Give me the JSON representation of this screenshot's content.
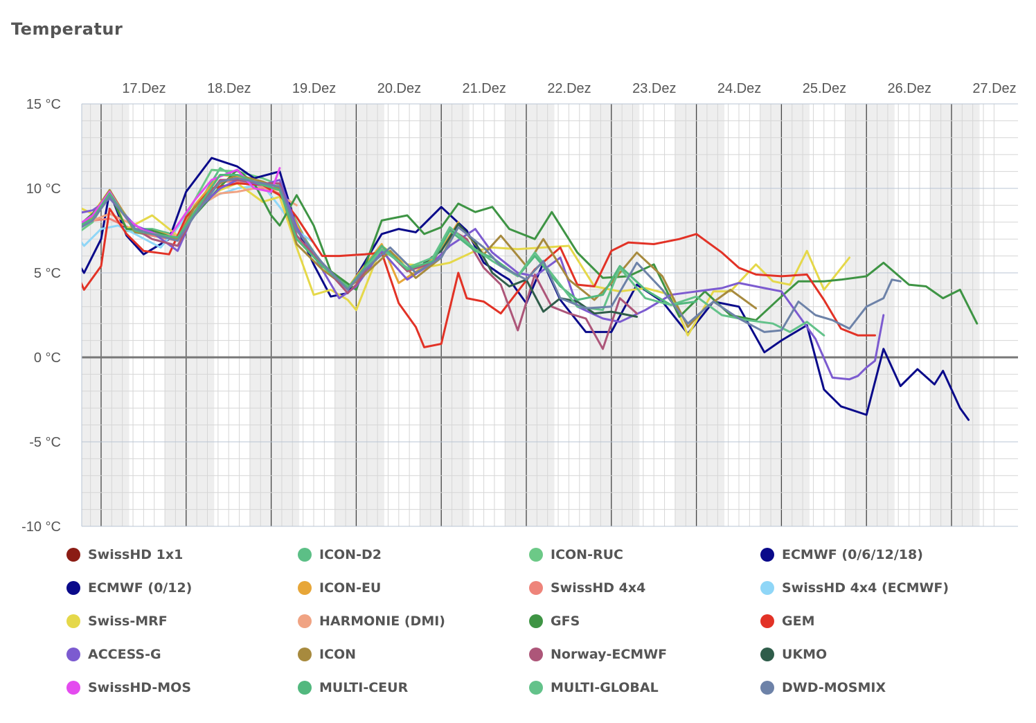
{
  "title": "Temperatur",
  "chart_data": {
    "type": "line",
    "title": "Temperatur",
    "xlabel": "",
    "ylabel": "",
    "ylim": [
      -10,
      15
    ],
    "xlim": [
      16.3,
      27.3
    ],
    "yticks": [
      "15 °C",
      "10 °C",
      "5 °C",
      "0 °C",
      "-5 °C",
      "-10 °C"
    ],
    "ytick_values": [
      15,
      10,
      5,
      0,
      -5,
      -10
    ],
    "xticks": [
      "17.Dez",
      "18.Dez",
      "19.Dez",
      "20.Dez",
      "21.Dez",
      "22.Dez",
      "23.Dez",
      "24.Dez",
      "25.Dez",
      "26.Dez",
      "27.Dez"
    ],
    "xtick_values": [
      17,
      18,
      19,
      20,
      21,
      22,
      23,
      24,
      25,
      26,
      27
    ],
    "series": [
      {
        "name": "SwissHD 1x1",
        "color": "#8b1c14",
        "x": [],
        "values": []
      },
      {
        "name": "ICON-D2",
        "color": "#5cbf86",
        "x": [
          16.38,
          16.6,
          16.9,
          17.1,
          17.4,
          17.6,
          17.9,
          18.1,
          18.4,
          18.6,
          18.9,
          19.1,
          19.4,
          19.6,
          19.9,
          20.0
        ],
        "values": [
          8.0,
          7.2,
          8.2,
          9.8,
          7.6,
          7.6,
          7.2,
          8.7,
          11.2,
          10.6,
          10.2,
          10.0,
          7.0,
          5.5,
          4.2,
          4.6
        ]
      },
      {
        "name": "ICON-RUC",
        "color": "#6cc987",
        "x": [
          16.38,
          16.6,
          16.9,
          17.1,
          17.3,
          17.5,
          17.8,
          18.0,
          18.3,
          18.6,
          18.9,
          19.1
        ],
        "values": [
          7.8,
          6.9,
          8.0,
          9.7,
          7.5,
          7.3,
          7.0,
          8.4,
          11.1,
          11.0,
          10.6,
          10.2
        ]
      },
      {
        "name": "ECMWF (0/6/12/18)",
        "color": "#0a0a8a",
        "x": [
          16.38,
          16.6,
          16.8,
          17.0,
          17.1,
          17.3,
          17.5,
          17.8,
          18.0,
          18.3,
          18.6,
          18.8,
          19.1,
          19.3,
          19.5,
          19.7,
          19.9,
          20.0,
          20.3,
          20.5,
          20.7,
          21.0,
          21.3,
          21.5,
          21.7,
          21.8,
          22.0,
          22.2,
          22.4,
          22.7,
          23.0,
          23.3,
          23.6,
          23.9,
          24.2,
          24.5,
          24.8,
          25.0,
          25.3,
          25.5,
          25.7,
          26.0,
          26.2,
          26.4,
          26.6,
          26.8,
          26.9,
          27.1,
          27.2
        ],
        "values": [
          7.9,
          6.6,
          5.0,
          7.0,
          9.8,
          7.2,
          6.1,
          7.0,
          9.8,
          11.8,
          11.3,
          10.6,
          11.0,
          7.7,
          5.5,
          3.6,
          3.8,
          4.8,
          7.3,
          7.6,
          7.4,
          8.9,
          7.5,
          5.6,
          4.9,
          4.6,
          3.2,
          5.6,
          3.4,
          1.5,
          1.5,
          4.3,
          3.3,
          1.4,
          3.3,
          3.0,
          0.3,
          1.0,
          1.9,
          -1.9,
          -2.9,
          -3.4,
          0.5,
          -1.7,
          -0.7,
          -1.6,
          -0.8,
          -3.0,
          -3.7
        ]
      },
      {
        "name": "ECMWF (0/12)",
        "color": "#0a0a8a",
        "x": [],
        "values": []
      },
      {
        "name": "ICON-EU",
        "color": "#e7a638",
        "x": [
          16.38,
          16.6,
          16.9,
          17.1,
          17.4,
          17.6,
          17.9,
          18.1,
          18.4,
          18.6,
          18.9,
          19.1,
          19.4,
          19.6,
          19.9,
          20.0,
          20.3,
          20.5,
          20.8,
          21.0,
          21.2
        ],
        "values": [
          7.9,
          7.5,
          8.3,
          9.9,
          7.5,
          7.5,
          7.1,
          9.0,
          10.8,
          10.7,
          10.0,
          9.9,
          6.9,
          5.4,
          4.1,
          4.8,
          6.7,
          4.4,
          5.4,
          6.4,
          8.0
        ]
      },
      {
        "name": "SwissHD 4x4",
        "color": "#ee847a",
        "x": [
          16.38,
          16.6,
          16.9,
          17.1,
          17.4,
          17.6,
          17.9,
          18.1,
          18.4,
          18.6,
          18.9,
          19.1
        ],
        "values": [
          7.8,
          7.7,
          8.1,
          8.2,
          7.5,
          7.2,
          6.9,
          8.6,
          10.4,
          10.4,
          10.0,
          9.7
        ]
      },
      {
        "name": "SwissHD 4x4 (ECMWF)",
        "color": "#8fd6f7",
        "x": [
          16.38,
          16.6,
          16.8,
          17.0,
          17.2,
          17.4,
          17.7,
          18.0,
          18.3,
          18.6,
          18.9,
          19.1,
          19.3,
          19.5
        ],
        "values": [
          8.2,
          7.9,
          6.6,
          7.6,
          7.8,
          7.3,
          6.5,
          8.3,
          9.5,
          10.0,
          10.2,
          8.9,
          7.5,
          6.8
        ]
      },
      {
        "name": "Swiss-MRF",
        "color": "#e5d84a",
        "x": [
          16.38,
          16.6,
          16.9,
          17.1,
          17.3,
          17.6,
          17.9,
          18.1,
          18.4,
          18.6,
          18.9,
          19.1,
          19.3,
          19.5,
          19.7,
          19.9,
          20.0,
          20.3,
          20.6,
          20.9,
          21.1,
          21.4,
          21.6,
          21.9,
          22.2,
          22.5,
          22.8,
          23.1,
          23.4,
          23.7,
          23.9,
          24.2,
          24.4,
          24.7,
          24.9,
          25.1,
          25.3,
          25.5,
          25.8
        ],
        "values": [
          9.1,
          9.2,
          8.5,
          9.9,
          7.6,
          8.4,
          7.2,
          8.8,
          9.9,
          10.3,
          9.2,
          9.5,
          6.5,
          3.7,
          4.0,
          3.4,
          2.8,
          6.6,
          5.5,
          5.4,
          5.6,
          6.3,
          6.5,
          6.4,
          6.5,
          6.6,
          4.2,
          3.9,
          4.1,
          3.7,
          1.3,
          3.9,
          3.9,
          5.5,
          4.5,
          4.3,
          6.3,
          4.0,
          5.9
        ]
      },
      {
        "name": "HARMONIE (DMI)",
        "color": "#f0a383",
        "x": [
          16.38,
          16.6,
          16.9,
          17.1,
          17.4,
          17.6,
          17.9,
          18.1,
          18.4,
          18.6,
          18.9,
          19.1,
          19.3
        ],
        "values": [
          7.4,
          7.9,
          8.1,
          8.5,
          7.8,
          7.3,
          7.2,
          8.8,
          9.7,
          9.8,
          10.1,
          9.6,
          9.0
        ]
      },
      {
        "name": "GFS",
        "color": "#3e9444",
        "x": [
          16.38,
          16.6,
          16.9,
          17.1,
          17.3,
          17.6,
          17.9,
          18.1,
          18.4,
          18.6,
          18.8,
          19.0,
          19.1,
          19.3,
          19.5,
          19.7,
          20.0,
          20.3,
          20.4,
          20.6,
          20.8,
          21.0,
          21.2,
          21.4,
          21.6,
          21.8,
          22.1,
          22.3,
          22.6,
          22.9,
          23.2,
          23.5,
          23.8,
          24.1,
          24.4,
          24.7,
          25.0,
          25.2,
          25.5,
          25.7,
          26.0,
          26.2,
          26.5,
          26.7,
          26.9,
          27.1,
          27.3
        ],
        "values": [
          7.8,
          7.2,
          8.5,
          9.7,
          7.6,
          7.5,
          7.0,
          8.4,
          10.1,
          11.1,
          10.3,
          8.4,
          7.8,
          9.6,
          7.8,
          5.1,
          4.0,
          8.1,
          8.2,
          8.4,
          7.3,
          7.7,
          9.1,
          8.6,
          8.9,
          7.6,
          7.0,
          8.6,
          6.2,
          4.7,
          4.8,
          5.5,
          2.4,
          3.9,
          2.5,
          2.2,
          3.6,
          4.5,
          4.5,
          4.6,
          4.8,
          5.6,
          4.3,
          4.2,
          3.5,
          4.0,
          2.0
        ]
      },
      {
        "name": "GEM",
        "color": "#e23226",
        "x": [
          16.38,
          16.6,
          16.8,
          17.0,
          17.1,
          17.3,
          17.5,
          17.8,
          18.0,
          18.3,
          18.6,
          18.9,
          19.1,
          19.3,
          19.6,
          19.8,
          20.1,
          20.3,
          20.5,
          20.7,
          20.8,
          21.0,
          21.2,
          21.3,
          21.5,
          21.7,
          21.9,
          22.1,
          22.4,
          22.6,
          22.8,
          23.0,
          23.2,
          23.5,
          23.8,
          24.0,
          24.3,
          24.5,
          24.7,
          25.0,
          25.3,
          25.5,
          25.7,
          25.9,
          26.1
        ],
        "values": [
          6.9,
          6.3,
          4.0,
          5.4,
          8.8,
          7.3,
          6.3,
          6.1,
          8.3,
          10.0,
          10.3,
          10.2,
          9.6,
          8.3,
          6.0,
          6.0,
          6.1,
          6.2,
          3.2,
          1.8,
          0.6,
          0.8,
          5.0,
          3.5,
          3.3,
          2.6,
          3.9,
          5.2,
          6.5,
          4.3,
          4.2,
          6.3,
          6.8,
          6.7,
          7.0,
          7.3,
          6.2,
          5.3,
          4.9,
          4.8,
          4.9,
          3.4,
          1.7,
          1.3,
          1.3
        ]
      },
      {
        "name": "ACCESS-G",
        "color": "#7c5bd0",
        "x": [
          16.38,
          16.6,
          16.9,
          17.1,
          17.4,
          17.6,
          17.9,
          18.1,
          18.4,
          18.6,
          18.9,
          19.1,
          19.3,
          19.6,
          19.8,
          20.0,
          20.3,
          20.6,
          20.9,
          21.1,
          21.4,
          21.6,
          21.9,
          22.1,
          22.4,
          22.6,
          22.9,
          23.1,
          23.4,
          23.7,
          24.0,
          24.3,
          24.5,
          24.8,
          25.0,
          25.2,
          25.4,
          25.6,
          25.8,
          25.9,
          26.0,
          26.1,
          26.2
        ],
        "values": [
          8.1,
          8.4,
          8.7,
          9.4,
          7.8,
          7.4,
          6.3,
          8.6,
          10.0,
          10.5,
          10.2,
          10.5,
          7.7,
          5.2,
          3.5,
          4.2,
          6.3,
          4.6,
          5.6,
          6.6,
          7.6,
          6.2,
          5.0,
          4.8,
          5.9,
          3.0,
          2.3,
          2.1,
          2.8,
          3.7,
          3.9,
          4.1,
          4.4,
          4.1,
          3.9,
          2.5,
          1.1,
          -1.2,
          -1.3,
          -1.1,
          -0.6,
          -0.2,
          2.5
        ]
      },
      {
        "name": "ICON",
        "color": "#a78a3e",
        "x": [
          16.38,
          16.6,
          16.9,
          17.1,
          17.4,
          17.6,
          17.9,
          18.1,
          18.4,
          18.6,
          18.9,
          19.1,
          19.3,
          19.6,
          19.9,
          20.1,
          20.4,
          20.7,
          21.0,
          21.2,
          21.5,
          21.7,
          22.0,
          22.2,
          22.5,
          22.8,
          23.0,
          23.3,
          23.6,
          23.9,
          24.1,
          24.4,
          24.7
        ],
        "values": [
          7.6,
          7.2,
          8.4,
          9.9,
          7.4,
          7.3,
          7.0,
          8.9,
          10.3,
          10.8,
          10.4,
          10.0,
          6.7,
          5.2,
          4.1,
          4.9,
          6.3,
          4.7,
          5.9,
          7.9,
          6.1,
          7.2,
          5.4,
          7.0,
          4.6,
          3.4,
          4.4,
          6.2,
          4.8,
          1.8,
          2.9,
          4.0,
          2.9
        ]
      },
      {
        "name": "Norway-ECMWF",
        "color": "#ad5679",
        "x": [
          16.38,
          16.6,
          16.9,
          17.1,
          17.4,
          17.6,
          17.9,
          18.1,
          18.4,
          18.6,
          18.9,
          19.1,
          19.3,
          19.6,
          19.9,
          20.0,
          20.3,
          20.6,
          20.9,
          21.1,
          21.3,
          21.5,
          21.7,
          21.9,
          22.1,
          22.3,
          22.5,
          22.7,
          22.9,
          23.1,
          23.3
        ],
        "values": [
          7.8,
          7.3,
          8.2,
          9.5,
          7.6,
          7.0,
          6.6,
          8.5,
          10.5,
          10.5,
          10.3,
          10.3,
          7.2,
          5.5,
          3.8,
          4.3,
          6.6,
          5.1,
          5.6,
          7.6,
          7.0,
          5.3,
          4.3,
          1.6,
          4.9,
          3.0,
          2.6,
          2.3,
          0.5,
          3.5,
          2.6
        ]
      },
      {
        "name": "UKMO",
        "color": "#2f5d4a",
        "x": [
          20.8,
          21.0,
          21.2,
          21.4,
          21.6,
          21.8,
          22.0,
          22.2,
          22.4,
          22.6,
          22.8,
          23.0,
          23.3
        ],
        "values": [
          5.6,
          6.3,
          7.9,
          6.8,
          5.0,
          4.2,
          4.6,
          2.7,
          3.5,
          3.3,
          2.6,
          2.7,
          2.4
        ]
      },
      {
        "name": "SwissHD-MOS",
        "color": "#e44bef",
        "x": [
          16.38,
          16.6,
          16.9,
          17.1,
          17.3,
          17.5,
          17.8,
          18.1,
          18.3,
          18.6,
          18.8,
          19.0,
          19.1
        ],
        "values": [
          8.2,
          7.4,
          8.4,
          9.8,
          8.2,
          7.5,
          7.1,
          9.3,
          10.5,
          11.1,
          10.0,
          9.8,
          11.2
        ]
      },
      {
        "name": "MULTI-CEUR",
        "color": "#52b87e",
        "x": [
          16.38,
          16.6,
          16.9,
          17.1,
          17.4,
          17.6,
          17.9,
          18.1,
          18.4,
          18.6,
          18.9,
          19.1,
          19.3,
          19.6,
          19.9,
          20.0,
          20.3,
          20.6,
          20.9,
          21.1,
          21.4,
          21.6,
          21.9,
          22.1,
          22.4,
          22.6,
          22.9,
          23.1,
          23.4,
          23.7,
          24.0
        ],
        "values": [
          7.9,
          7.4,
          8.2,
          9.7,
          7.5,
          7.3,
          7.1,
          8.6,
          10.8,
          10.8,
          10.2,
          9.9,
          7.0,
          5.4,
          4.1,
          4.7,
          6.6,
          5.2,
          5.7,
          7.5,
          6.3,
          5.9,
          4.8,
          6.0,
          4.2,
          3.4,
          3.7,
          5.4,
          4.0,
          3.1,
          3.3
        ]
      },
      {
        "name": "MULTI-GLOBAL",
        "color": "#63c28a",
        "x": [
          20.0,
          20.3,
          20.6,
          20.9,
          21.1,
          21.4,
          21.6,
          21.9,
          22.1,
          22.4,
          22.6,
          22.9,
          23.1,
          23.4,
          23.7,
          24.0,
          24.3,
          24.6,
          24.9,
          25.1,
          25.3,
          25.5
        ],
        "values": [
          4.6,
          6.4,
          5.3,
          5.9,
          7.7,
          6.4,
          5.7,
          4.8,
          6.2,
          4.3,
          3.0,
          2.8,
          5.3,
          3.5,
          3.1,
          3.6,
          2.5,
          2.2,
          2.0,
          1.5,
          2.1,
          1.3
        ]
      },
      {
        "name": "DWD-MOSMIX",
        "color": "#6d82a8",
        "x": [
          16.38,
          16.6,
          16.9,
          17.1,
          17.4,
          17.6,
          17.9,
          18.1,
          18.4,
          18.6,
          18.9,
          19.1,
          19.3,
          19.6,
          19.9,
          20.1,
          20.4,
          20.7,
          21.0,
          21.2,
          21.5,
          21.7,
          22.0,
          22.2,
          22.4,
          22.7,
          23.0,
          23.3,
          23.6,
          23.9,
          24.2,
          24.5,
          24.8,
          25.0,
          25.2,
          25.4,
          25.6,
          25.8,
          26.0,
          26.2,
          26.3,
          26.4
        ],
        "values": [
          7.7,
          7.2,
          8.1,
          9.5,
          7.6,
          7.3,
          6.9,
          8.4,
          10.4,
          10.6,
          10.3,
          10.1,
          7.5,
          5.6,
          4.0,
          5.2,
          6.5,
          5.0,
          5.9,
          7.7,
          6.5,
          5.4,
          4.6,
          5.7,
          3.5,
          2.9,
          3.0,
          5.6,
          4.0,
          2.0,
          3.3,
          2.3,
          1.5,
          1.6,
          3.3,
          2.5,
          2.2,
          1.7,
          3.0,
          3.5,
          4.6,
          4.5
        ]
      }
    ]
  }
}
